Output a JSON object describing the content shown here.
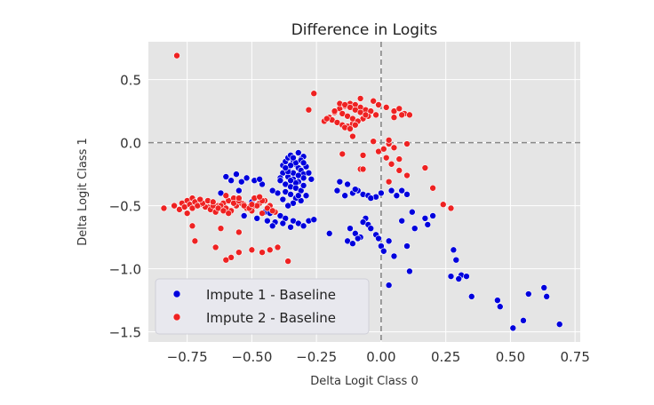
{
  "chart_data": {
    "type": "scatter",
    "title": "Difference in Logits",
    "xlabel": "Delta Logit Class 0",
    "ylabel": "Delta Logit Class 1",
    "xlim": [
      -0.9,
      0.77
    ],
    "ylim": [
      -1.58,
      0.8
    ],
    "xticks": [
      -0.75,
      -0.5,
      -0.25,
      0.0,
      0.25,
      0.5,
      0.75
    ],
    "xtick_labels": [
      "−0.75",
      "−0.50",
      "−0.25",
      "0.00",
      "0.25",
      "0.50",
      "0.75"
    ],
    "yticks": [
      -1.5,
      -1.0,
      -0.5,
      0.0,
      0.5
    ],
    "ytick_labels": [
      "−1.5",
      "−1.0",
      "−0.5",
      "0.0",
      "0.5"
    ],
    "grid": true,
    "reference_lines": {
      "x": 0.0,
      "y": 0.0
    },
    "legend_position": "lower-left",
    "colors": {
      "background": "#e5e5e5",
      "grid": "#ffffff",
      "ref_line": "#888888"
    },
    "series": [
      {
        "name": "Impute 1 - Baseline",
        "color": "#0000dd",
        "x": [
          -0.38,
          -0.37,
          -0.36,
          -0.35,
          -0.34,
          -0.33,
          -0.32,
          -0.31,
          -0.3,
          -0.38,
          -0.36,
          -0.34,
          -0.32,
          -0.3,
          -0.29,
          -0.37,
          -0.35,
          -0.33,
          -0.31,
          -0.36,
          -0.34,
          -0.32,
          -0.3,
          -0.35,
          -0.33,
          -0.31,
          -0.39,
          -0.37,
          -0.35,
          -0.33,
          -0.31,
          -0.34,
          -0.36,
          -0.32,
          -0.3,
          -0.38,
          -0.4,
          -0.28,
          -0.42,
          -0.27,
          -0.36,
          -0.33,
          -0.31,
          -0.35,
          -0.3,
          -0.34,
          -0.37,
          -0.32,
          -0.39,
          -0.29,
          -0.6,
          -0.56,
          -0.52,
          -0.49,
          -0.46,
          -0.54,
          -0.58,
          -0.47,
          -0.5,
          -0.55,
          -0.45,
          -0.62,
          -0.43,
          -0.48,
          -0.53,
          -0.44,
          -0.41,
          -0.39,
          -0.37,
          -0.34,
          -0.32,
          -0.28,
          -0.26,
          -0.35,
          -0.3,
          -0.38,
          -0.42,
          -0.2,
          -0.16,
          -0.13,
          -0.11,
          -0.09,
          -0.07,
          -0.05,
          -0.02,
          -0.17,
          -0.14,
          -0.1,
          -0.04,
          0.0,
          0.04,
          0.06,
          0.08,
          0.1,
          -0.12,
          -0.1,
          -0.08,
          -0.13,
          -0.11,
          -0.09,
          -0.06,
          -0.07,
          -0.05,
          -0.04,
          -0.02,
          -0.01,
          0.0,
          0.01,
          0.03,
          0.08,
          0.1,
          0.13,
          0.17,
          0.2,
          0.18,
          0.12,
          0.05,
          0.28,
          0.29,
          0.31,
          0.33,
          0.35,
          0.3,
          0.46,
          0.45,
          0.51,
          0.55,
          0.57,
          0.63,
          0.64,
          0.69,
          0.27,
          0.03,
          0.11
        ],
        "y": [
          -0.18,
          -0.15,
          -0.12,
          -0.1,
          -0.14,
          -0.17,
          -0.2,
          -0.22,
          -0.25,
          -0.24,
          -0.27,
          -0.29,
          -0.31,
          -0.28,
          -0.19,
          -0.33,
          -0.35,
          -0.32,
          -0.13,
          -0.21,
          -0.24,
          -0.26,
          -0.11,
          -0.3,
          -0.36,
          -0.38,
          -0.28,
          -0.39,
          -0.41,
          -0.44,
          -0.46,
          -0.48,
          -0.5,
          -0.42,
          -0.34,
          -0.45,
          -0.4,
          -0.24,
          -0.38,
          -0.29,
          -0.23,
          -0.16,
          -0.14,
          -0.18,
          -0.16,
          -0.12,
          -0.2,
          -0.08,
          -0.3,
          -0.42,
          -0.27,
          -0.25,
          -0.28,
          -0.3,
          -0.33,
          -0.31,
          -0.3,
          -0.29,
          -0.47,
          -0.38,
          -0.55,
          -0.4,
          -0.56,
          -0.6,
          -0.58,
          -0.62,
          -0.63,
          -0.58,
          -0.6,
          -0.62,
          -0.64,
          -0.62,
          -0.61,
          -0.67,
          -0.66,
          -0.64,
          -0.66,
          -0.72,
          -0.31,
          -0.33,
          -0.4,
          -0.38,
          -0.41,
          -0.42,
          -0.43,
          -0.38,
          -0.42,
          -0.37,
          -0.44,
          -0.4,
          -0.38,
          -0.42,
          -0.38,
          -0.41,
          -0.68,
          -0.72,
          -0.75,
          -0.78,
          -0.8,
          -0.76,
          -0.6,
          -0.63,
          -0.65,
          -0.68,
          -0.73,
          -0.76,
          -0.82,
          -0.86,
          -0.78,
          -0.62,
          -0.82,
          -0.68,
          -0.6,
          -0.58,
          -0.65,
          -0.55,
          -0.9,
          -0.85,
          -0.93,
          -1.05,
          -1.06,
          -1.22,
          -1.08,
          -1.3,
          -1.25,
          -1.47,
          -1.41,
          -1.2,
          -1.15,
          -1.22,
          -1.44,
          -1.06,
          -1.13,
          -1.02
        ]
      },
      {
        "name": "Impute 2 - Baseline",
        "color": "#ee2222",
        "x": [
          -0.79,
          -0.26,
          -0.28,
          -0.22,
          -0.2,
          -0.18,
          -0.16,
          -0.14,
          -0.12,
          -0.1,
          -0.08,
          -0.06,
          -0.04,
          -0.02,
          -0.19,
          -0.17,
          -0.15,
          -0.13,
          -0.11,
          -0.09,
          -0.07,
          -0.05,
          -0.21,
          -0.16,
          -0.14,
          -0.12,
          -0.1,
          -0.08,
          -0.06,
          -0.18,
          -0.15,
          -0.13,
          -0.11,
          -0.09,
          -0.14,
          -0.12,
          -0.1,
          -0.08,
          -0.03,
          -0.01,
          0.02,
          0.05,
          0.07,
          0.09,
          0.11,
          0.05,
          0.08,
          0.03,
          -0.15,
          -0.11,
          -0.07,
          -0.03,
          -0.01,
          0.02,
          0.04,
          0.07,
          0.1,
          -0.08,
          0.03,
          0.1,
          0.05,
          0.01,
          0.03,
          -0.07,
          0.07,
          0.17,
          0.2,
          0.24,
          0.27,
          -0.84,
          -0.8,
          -0.77,
          -0.75,
          -0.73,
          -0.71,
          -0.69,
          -0.67,
          -0.65,
          -0.63,
          -0.61,
          -0.59,
          -0.57,
          -0.55,
          -0.53,
          -0.51,
          -0.49,
          -0.47,
          -0.45,
          -0.43,
          -0.41,
          -0.78,
          -0.76,
          -0.74,
          -0.72,
          -0.7,
          -0.68,
          -0.66,
          -0.64,
          -0.62,
          -0.6,
          -0.58,
          -0.56,
          -0.54,
          -0.52,
          -0.5,
          -0.48,
          -0.46,
          -0.44,
          -0.42,
          -0.75,
          -0.73,
          -0.71,
          -0.69,
          -0.67,
          -0.65,
          -0.63,
          -0.61,
          -0.59,
          -0.57,
          -0.55,
          -0.53,
          -0.51,
          -0.49,
          -0.47,
          -0.7,
          -0.65,
          -0.6,
          -0.55,
          -0.5,
          -0.46,
          -0.73,
          -0.62,
          -0.72,
          -0.64,
          -0.58,
          -0.6,
          -0.55,
          -0.5,
          -0.46,
          -0.43,
          -0.36,
          -0.55,
          -0.4
        ],
        "y": [
          0.69,
          0.39,
          0.26,
          0.17,
          0.2,
          0.24,
          0.27,
          0.29,
          0.31,
          0.3,
          0.28,
          0.26,
          0.25,
          0.22,
          0.18,
          0.16,
          0.14,
          0.13,
          0.15,
          0.17,
          0.19,
          0.21,
          0.19,
          0.31,
          0.3,
          0.28,
          0.26,
          0.24,
          0.22,
          0.25,
          0.23,
          0.21,
          0.19,
          0.17,
          0.12,
          0.11,
          0.14,
          0.35,
          0.33,
          0.3,
          0.28,
          0.25,
          0.27,
          0.23,
          0.22,
          0.2,
          0.22,
          -0.01,
          -0.09,
          0.05,
          -0.1,
          0.01,
          -0.07,
          -0.12,
          -0.17,
          -0.22,
          -0.26,
          -0.21,
          -0.31,
          -0.01,
          -0.04,
          -0.05,
          0.02,
          -0.21,
          -0.13,
          -0.2,
          -0.36,
          -0.49,
          -0.52,
          -0.52,
          -0.5,
          -0.48,
          -0.46,
          -0.44,
          -0.47,
          -0.49,
          -0.51,
          -0.53,
          -0.5,
          -0.48,
          -0.46,
          -0.44,
          -0.47,
          -0.49,
          -0.51,
          -0.5,
          -0.48,
          -0.46,
          -0.5,
          -0.55,
          -0.53,
          -0.51,
          -0.49,
          -0.47,
          -0.49,
          -0.51,
          -0.53,
          -0.55,
          -0.5,
          -0.52,
          -0.54,
          -0.5,
          -0.48,
          -0.52,
          -0.54,
          -0.5,
          -0.46,
          -0.52,
          -0.54,
          -0.56,
          -0.52,
          -0.5,
          -0.48,
          -0.46,
          -0.5,
          -0.52,
          -0.54,
          -0.56,
          -0.48,
          -0.46,
          -0.5,
          -0.52,
          -0.44,
          -0.43,
          -0.45,
          -0.47,
          -0.42,
          -0.44,
          -0.49,
          -0.56,
          -0.66,
          -0.68,
          -0.78,
          -0.83,
          -0.91,
          -0.93,
          -0.87,
          -0.85,
          -0.87,
          -0.85,
          -0.94,
          -0.71,
          -0.83
        ]
      }
    ]
  }
}
